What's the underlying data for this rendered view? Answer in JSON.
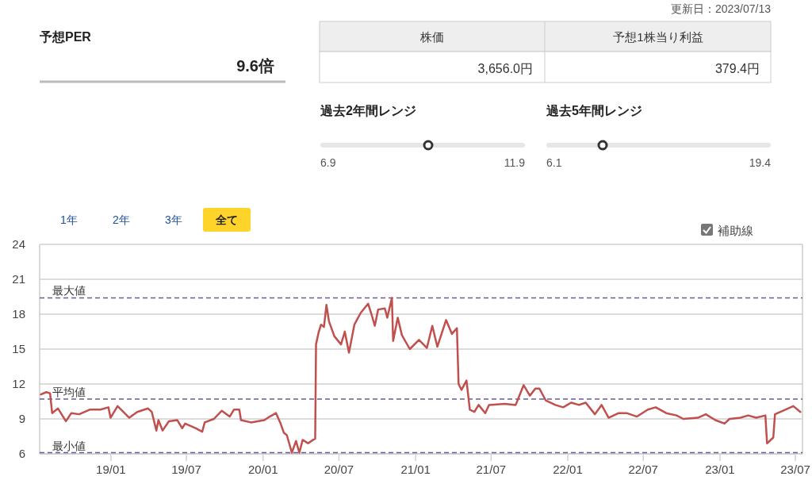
{
  "chart_data": [
    {
      "type": "other",
      "title": "予想PER",
      "annotations": [
        "9.6倍",
        "更新日：2023/07/13",
        "株価",
        "予想1株当り利益",
        "3,656.0円",
        "379.4円",
        "過去2年間レンジ",
        "6.9",
        "11.9",
        "過去5年間レンジ",
        "6.1",
        "19.4"
      ]
    },
    {
      "type": "line",
      "annotations": [
        "1年",
        "2年",
        "3年",
        "全て",
        "補助線"
      ],
      "xlim": [
        "2018-07-14",
        "2023-07-18"
      ],
      "xticks": [
        {
          "value": "2019-01-01",
          "label": "19/01"
        },
        {
          "value": "2019-07-01",
          "label": "19/07"
        },
        {
          "value": "2020-01-01",
          "label": "20/01"
        },
        {
          "value": "2020-07-01",
          "label": "20/07"
        },
        {
          "value": "2021-01-01",
          "label": "21/01"
        },
        {
          "value": "2021-07-01",
          "label": "21/07"
        },
        {
          "value": "2022-01-01",
          "label": "22/01"
        },
        {
          "value": "2022-07-01",
          "label": "22/07"
        },
        {
          "value": "2023-01-01",
          "label": "23/01"
        },
        {
          "value": "2023-07-01",
          "label": "23/07"
        }
      ],
      "ylim": [
        6,
        24
      ],
      "yticks": [
        6,
        9,
        12,
        15,
        18,
        21,
        24
      ],
      "grid": "y",
      "ref_lines": [
        {
          "axis": "y",
          "value": 19.4,
          "label": "最大値",
          "color": "#6b5b95",
          "line_style": "dashed"
        },
        {
          "axis": "y",
          "value": 10.7,
          "label": "平均値",
          "color": "#6b5b95",
          "line_style": "dashed"
        },
        {
          "axis": "y",
          "value": 6.1,
          "label": "最小値",
          "color": "#6b5b95",
          "line_style": "dashed"
        }
      ],
      "x": [
        "2018-07-17",
        "2018-07-30",
        "2018-08-08",
        "2018-08-13",
        "2018-08-27",
        "2018-09-15",
        "2018-09-28",
        "2018-10-17",
        "2018-11-11",
        "2018-12-07",
        "2018-12-26",
        "2018-12-31",
        "2019-01-17",
        "2019-02-14",
        "2019-03-05",
        "2019-03-31",
        "2019-04-09",
        "2019-04-20",
        "2019-04-25",
        "2019-05-05",
        "2019-05-20",
        "2019-06-09",
        "2019-06-21",
        "2019-06-28",
        "2019-07-23",
        "2019-08-08",
        "2019-08-14",
        "2019-09-05",
        "2019-09-24",
        "2019-10-13",
        "2019-10-23",
        "2019-11-05",
        "2019-11-09",
        "2019-12-03",
        "2020-01-04",
        "2020-01-17",
        "2020-02-01",
        "2020-02-11",
        "2020-02-20",
        "2020-02-27",
        "2020-03-10",
        "2020-03-20",
        "2020-03-28",
        "2020-04-05",
        "2020-04-18",
        "2020-04-30",
        "2020-05-05",
        "2020-05-07",
        "2020-05-13",
        "2020-05-19",
        "2020-05-26",
        "2020-06-01",
        "2020-06-07",
        "2020-06-20",
        "2020-07-06",
        "2020-07-15",
        "2020-07-25",
        "2020-08-07",
        "2020-08-22",
        "2020-09-09",
        "2020-09-17",
        "2020-09-25",
        "2020-10-03",
        "2020-10-19",
        "2020-10-25",
        "2020-11-05",
        "2020-11-08",
        "2020-11-19",
        "2020-11-29",
        "2020-12-18",
        "2021-01-09",
        "2021-01-28",
        "2021-02-10",
        "2021-02-22",
        "2021-03-15",
        "2021-03-29",
        "2021-04-10",
        "2021-04-14",
        "2021-04-21",
        "2021-05-03",
        "2021-05-11",
        "2021-05-22",
        "2021-06-01",
        "2021-06-17",
        "2021-06-26",
        "2021-08-03",
        "2021-08-29",
        "2021-09-17",
        "2021-10-02",
        "2021-10-15",
        "2021-10-25",
        "2021-11-09",
        "2021-12-02",
        "2021-12-21",
        "2022-01-09",
        "2022-01-28",
        "2022-02-13",
        "2022-03-07",
        "2022-03-23",
        "2022-04-09",
        "2022-05-03",
        "2022-05-22",
        "2022-06-16",
        "2022-07-12",
        "2022-07-31",
        "2022-08-25",
        "2022-09-19",
        "2022-10-05",
        "2022-11-09",
        "2022-11-28",
        "2022-12-21",
        "2023-01-12",
        "2023-01-24",
        "2023-02-19",
        "2023-03-10",
        "2023-03-29",
        "2023-04-20",
        "2023-04-24",
        "2023-05-09",
        "2023-05-13",
        "2023-06-07",
        "2023-06-26",
        "2023-07-13"
      ],
      "series": [
        {
          "color": "#c0504d",
          "values": [
            11.1,
            11.3,
            11.2,
            9.5,
            9.9,
            8.8,
            9.5,
            9.4,
            9.8,
            9.8,
            10.0,
            9.1,
            10.1,
            9.1,
            9.6,
            9.9,
            9.6,
            8.0,
            8.9,
            8.0,
            8.8,
            8.9,
            8.2,
            8.6,
            8.2,
            7.9,
            8.7,
            9.0,
            9.7,
            9.2,
            9.8,
            9.8,
            8.9,
            8.7,
            8.9,
            9.2,
            9.5,
            8.7,
            7.8,
            7.6,
            6.1,
            7.1,
            6.1,
            7.2,
            6.9,
            7.2,
            7.3,
            15.4,
            16.4,
            17.1,
            16.9,
            18.8,
            17.4,
            16.1,
            15.4,
            16.5,
            14.7,
            17.1,
            18.1,
            18.9,
            18.0,
            17.0,
            18.4,
            18.5,
            17.7,
            19.4,
            15.7,
            17.7,
            16.2,
            15.0,
            15.8,
            15.1,
            17.0,
            15.2,
            17.5,
            16.3,
            16.8,
            12.0,
            11.5,
            12.3,
            9.8,
            9.6,
            10.2,
            9.5,
            10.2,
            10.3,
            10.2,
            11.9,
            11.0,
            11.6,
            11.6,
            10.6,
            10.2,
            10.0,
            10.4,
            10.2,
            10.4,
            9.4,
            10.2,
            9.1,
            9.5,
            9.5,
            9.2,
            9.8,
            10.0,
            9.5,
            9.3,
            9.0,
            9.1,
            9.4,
            8.9,
            8.6,
            9.0,
            9.1,
            9.3,
            9.1,
            9.3,
            6.9,
            7.4,
            9.4,
            9.8,
            10.1,
            9.6
          ]
        }
      ]
    }
  ]
}
